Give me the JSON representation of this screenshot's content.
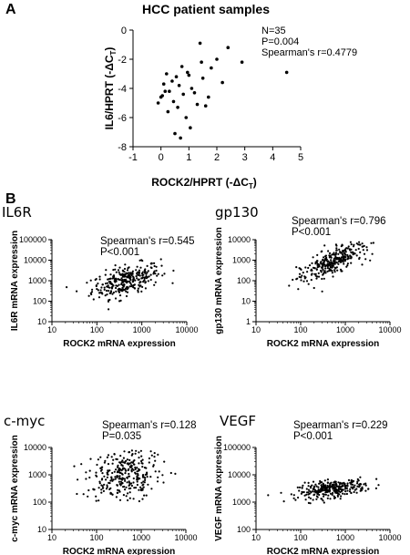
{
  "panels": {
    "a": "A",
    "b": "B"
  },
  "panel_a": {
    "title": "HCC patient samples",
    "xlabel": "ROCK2/HPRT (-ΔC",
    "ylabel": "IL6/HPRT (-ΔC",
    "label_subscript": "T",
    "label_close": ")",
    "stats": [
      "N=35",
      "P=0.004",
      "Spearman's r=0.4779"
    ],
    "xticks": [
      "-1",
      "0",
      "1",
      "2",
      "3",
      "4",
      "5"
    ],
    "yticks": [
      "0",
      "-2",
      "-4",
      "-6",
      "-8"
    ]
  },
  "panel_b_common": {
    "xlabel": "ROCK2 mRNA expression",
    "xticks": [
      "10",
      "100",
      "1000",
      "10000"
    ],
    "yticks": [
      "10",
      "100",
      "1000",
      "10000",
      "100000"
    ]
  },
  "subplots": [
    {
      "gene": "IL6R",
      "ylabel": "IL6R mRNA expression",
      "stat1": "Spearman's r=0.545",
      "stat2": "P<0.001"
    },
    {
      "gene": "gp130",
      "ylabel": "gp130 mRNA expression",
      "stat1": "Spearman's r=0.796",
      "stat2": "P<0.001"
    },
    {
      "gene": "c-myc",
      "ylabel": "c-myc mRNA expression",
      "stat1": "Spearman's r=0.128",
      "stat2": "P=0.035"
    },
    {
      "gene": "VEGF",
      "ylabel": "VEGF mRNA expression",
      "stat1": "Spearman's r=0.229",
      "stat2": "P<0.001"
    }
  ],
  "chart_data": [
    {
      "type": "scatter",
      "title": "HCC patient samples",
      "xlabel": "ROCK2/HPRT (-ΔCT)",
      "ylabel": "IL6/HPRT (-ΔCT)",
      "xlim": [
        -1,
        5
      ],
      "ylim": [
        -8,
        0
      ],
      "annotations": [
        "N=35",
        "P=0.004",
        "Spearman's r=0.4779"
      ],
      "x": [
        -0.1,
        0.0,
        0.05,
        0.1,
        0.15,
        0.2,
        0.25,
        0.3,
        0.4,
        0.45,
        0.5,
        0.55,
        0.6,
        0.65,
        0.7,
        0.75,
        0.8,
        0.9,
        0.95,
        1.0,
        1.05,
        1.1,
        1.2,
        1.3,
        1.4,
        1.45,
        1.5,
        1.6,
        1.7,
        1.8,
        2.0,
        2.2,
        2.4,
        2.9,
        4.5
      ],
      "y": [
        -5.0,
        -4.6,
        -4.5,
        -3.7,
        -4.2,
        -3.0,
        -5.6,
        -4.2,
        -3.5,
        -4.9,
        -7.1,
        -3.2,
        -5.3,
        -3.8,
        -7.4,
        -2.5,
        -4.4,
        -6.0,
        -2.9,
        -3.1,
        -6.7,
        -4.0,
        -4.3,
        -5.1,
        -0.9,
        -2.2,
        -3.3,
        -5.2,
        -4.6,
        -2.6,
        -2.0,
        -3.6,
        -1.2,
        -2.2,
        -2.9
      ]
    },
    {
      "type": "scatter",
      "title": "IL6R",
      "xlabel": "ROCK2 mRNA expression",
      "ylabel": "IL6R mRNA expression",
      "xscale": "log",
      "yscale": "log",
      "xlim": [
        10,
        10000
      ],
      "ylim": [
        10,
        100000
      ],
      "annotations": [
        "Spearman's r=0.545",
        "P<0.001"
      ],
      "points": "approximately 300 samples, dense cloud from x≈100–2000, y≈200–5000; positive trend",
      "x": [
        15,
        30,
        50,
        80,
        120,
        200,
        300,
        500,
        700,
        1000,
        1500,
        2500,
        4000
      ],
      "y": [
        120,
        180,
        250,
        300,
        450,
        600,
        900,
        1200,
        1500,
        2000,
        2500,
        3500,
        5000
      ]
    },
    {
      "type": "scatter",
      "title": "gp130",
      "xlabel": "ROCK2 mRNA expression",
      "ylabel": "gp130 mRNA expression",
      "xscale": "log",
      "yscale": "log",
      "xlim": [
        10,
        10000
      ],
      "ylim": [
        1,
        10000
      ],
      "annotations": [
        "Spearman's r=0.796",
        "P<0.001"
      ],
      "points": "approximately 300 samples, strong positive trend",
      "x": [
        15,
        30,
        50,
        80,
        120,
        200,
        300,
        500,
        700,
        1000,
        1500,
        2500,
        4000
      ],
      "y": [
        8,
        15,
        25,
        40,
        70,
        120,
        250,
        400,
        600,
        900,
        1300,
        2000,
        4000
      ]
    },
    {
      "type": "scatter",
      "title": "c-myc",
      "xlabel": "ROCK2 mRNA expression",
      "ylabel": "c-myc mRNA expression",
      "xscale": "log",
      "yscale": "log",
      "xlim": [
        10,
        10000
      ],
      "ylim": [
        10,
        10000
      ],
      "annotations": [
        "Spearman's r=0.128",
        "P=0.035"
      ],
      "points": "approximately 300 samples, weak positive trend, wide spread",
      "x": [
        15,
        30,
        50,
        80,
        120,
        200,
        300,
        500,
        700,
        1000,
        1500,
        2500
      ],
      "y": [
        800,
        600,
        900,
        700,
        1000,
        900,
        1200,
        1000,
        1300,
        1100,
        1500,
        1400
      ]
    },
    {
      "type": "scatter",
      "title": "VEGF",
      "xlabel": "ROCK2 mRNA expression",
      "ylabel": "VEGF mRNA expression",
      "xscale": "log",
      "yscale": "log",
      "xlim": [
        10,
        10000
      ],
      "ylim": [
        100,
        100000
      ],
      "annotations": [
        "Spearman's r=0.229",
        "P<0.001"
      ],
      "points": "approximately 300 samples, weak positive trend",
      "x": [
        15,
        30,
        50,
        80,
        120,
        200,
        300,
        500,
        700,
        1000,
        1500,
        2500
      ],
      "y": [
        1500,
        1600,
        1800,
        2000,
        2200,
        2500,
        2700,
        3000,
        3300,
        3500,
        3800,
        4000
      ]
    }
  ]
}
